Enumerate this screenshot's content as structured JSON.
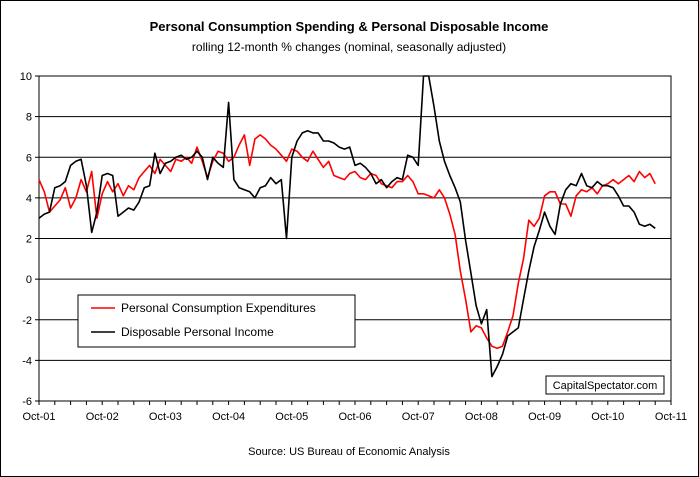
{
  "chart_data": {
    "type": "line",
    "title": "Personal Consumption Spending & Personal Disposable Income",
    "subtitle": "rolling 12-month % changes (nominal, seasonally adjusted)",
    "source": "Source: US Bureau of Economic Analysis",
    "watermark": "CapitalSpectator.com",
    "xlabel": "",
    "ylabel": "",
    "ylim": [
      -6,
      10
    ],
    "y_ticks": [
      -6,
      -4,
      -2,
      0,
      2,
      4,
      6,
      8,
      10
    ],
    "x_range": [
      0,
      120
    ],
    "x_tick_labels": [
      "Oct-01",
      "Oct-02",
      "Oct-03",
      "Oct-04",
      "Oct-05",
      "Oct-06",
      "Oct-07",
      "Oct-08",
      "Oct-09",
      "Oct-10",
      "Oct-11"
    ],
    "x_tick_months": [
      0,
      12,
      24,
      36,
      48,
      60,
      72,
      84,
      96,
      108,
      120
    ],
    "grid": "horizontal",
    "legend_position": "lower-left",
    "colors": {
      "pce": "#ff0000",
      "dpi": "#000000",
      "grid": "#000000"
    },
    "series": [
      {
        "name": "Personal Consumption Expenditures",
        "color": "#ff0000",
        "points": [
          [
            0,
            4.9
          ],
          [
            1,
            4.3
          ],
          [
            2,
            3.3
          ],
          [
            3,
            3.6
          ],
          [
            4,
            3.9
          ],
          [
            5,
            4.5
          ],
          [
            6,
            3.5
          ],
          [
            7,
            4.0
          ],
          [
            8,
            4.9
          ],
          [
            9,
            4.3
          ],
          [
            10,
            5.3
          ],
          [
            11,
            3.0
          ],
          [
            12,
            4.2
          ],
          [
            13,
            4.8
          ],
          [
            14,
            4.3
          ],
          [
            15,
            4.7
          ],
          [
            16,
            4.1
          ],
          [
            17,
            4.6
          ],
          [
            18,
            4.4
          ],
          [
            19,
            5.0
          ],
          [
            20,
            5.3
          ],
          [
            21,
            5.6
          ],
          [
            22,
            5.2
          ],
          [
            23,
            5.9
          ],
          [
            24,
            5.6
          ],
          [
            25,
            5.3
          ],
          [
            26,
            5.9
          ],
          [
            27,
            5.8
          ],
          [
            28,
            6.0
          ],
          [
            29,
            5.7
          ],
          [
            30,
            6.5
          ],
          [
            31,
            5.8
          ],
          [
            32,
            5.0
          ],
          [
            33,
            5.8
          ],
          [
            34,
            6.3
          ],
          [
            35,
            6.2
          ],
          [
            36,
            5.8
          ],
          [
            37,
            6.0
          ],
          [
            38,
            6.6
          ],
          [
            39,
            7.1
          ],
          [
            40,
            5.6
          ],
          [
            41,
            6.9
          ],
          [
            42,
            7.1
          ],
          [
            43,
            6.9
          ],
          [
            44,
            6.6
          ],
          [
            45,
            6.4
          ],
          [
            46,
            6.1
          ],
          [
            47,
            5.8
          ],
          [
            48,
            6.4
          ],
          [
            49,
            6.3
          ],
          [
            50,
            6.0
          ],
          [
            51,
            5.8
          ],
          [
            52,
            6.3
          ],
          [
            53,
            5.9
          ],
          [
            54,
            5.5
          ],
          [
            55,
            5.8
          ],
          [
            56,
            5.1
          ],
          [
            57,
            5.0
          ],
          [
            58,
            4.9
          ],
          [
            59,
            5.2
          ],
          [
            60,
            5.3
          ],
          [
            61,
            5.0
          ],
          [
            62,
            4.9
          ],
          [
            63,
            5.2
          ],
          [
            64,
            5.1
          ],
          [
            65,
            4.7
          ],
          [
            66,
            4.6
          ],
          [
            67,
            4.5
          ],
          [
            68,
            4.8
          ],
          [
            69,
            4.8
          ],
          [
            70,
            5.1
          ],
          [
            71,
            4.8
          ],
          [
            72,
            4.2
          ],
          [
            73,
            4.2
          ],
          [
            74,
            4.1
          ],
          [
            75,
            4.0
          ],
          [
            76,
            4.4
          ],
          [
            77,
            4.0
          ],
          [
            78,
            3.2
          ],
          [
            79,
            2.2
          ],
          [
            80,
            0.4
          ],
          [
            81,
            -1.0
          ],
          [
            82,
            -2.6
          ],
          [
            83,
            -2.3
          ],
          [
            84,
            -2.4
          ],
          [
            85,
            -2.9
          ],
          [
            86,
            -3.3
          ],
          [
            87,
            -3.4
          ],
          [
            88,
            -3.3
          ],
          [
            89,
            -2.6
          ],
          [
            90,
            -1.8
          ],
          [
            91,
            -0.2
          ],
          [
            92,
            1.0
          ],
          [
            93,
            2.9
          ],
          [
            94,
            2.6
          ],
          [
            95,
            3.0
          ],
          [
            96,
            4.1
          ],
          [
            97,
            4.3
          ],
          [
            98,
            4.3
          ],
          [
            99,
            3.7
          ],
          [
            100,
            3.7
          ],
          [
            101,
            3.1
          ],
          [
            102,
            4.1
          ],
          [
            103,
            4.4
          ],
          [
            104,
            4.3
          ],
          [
            105,
            4.5
          ],
          [
            106,
            4.2
          ],
          [
            107,
            4.6
          ],
          [
            108,
            4.7
          ],
          [
            109,
            4.9
          ],
          [
            110,
            4.7
          ],
          [
            111,
            4.9
          ],
          [
            112,
            5.1
          ],
          [
            113,
            4.8
          ],
          [
            114,
            5.3
          ],
          [
            115,
            5.0
          ],
          [
            116,
            5.2
          ],
          [
            117,
            4.7
          ]
        ]
      },
      {
        "name": "Disposable Personal Income",
        "color": "#000000",
        "points": [
          [
            0,
            3.0
          ],
          [
            1,
            3.2
          ],
          [
            2,
            3.3
          ],
          [
            3,
            4.5
          ],
          [
            4,
            4.6
          ],
          [
            5,
            4.8
          ],
          [
            6,
            5.6
          ],
          [
            7,
            5.8
          ],
          [
            8,
            5.9
          ],
          [
            9,
            4.6
          ],
          [
            10,
            2.3
          ],
          [
            11,
            3.3
          ],
          [
            12,
            5.1
          ],
          [
            13,
            5.2
          ],
          [
            14,
            5.1
          ],
          [
            15,
            3.1
          ],
          [
            16,
            3.3
          ],
          [
            17,
            3.5
          ],
          [
            18,
            3.4
          ],
          [
            19,
            3.8
          ],
          [
            20,
            4.5
          ],
          [
            21,
            4.6
          ],
          [
            22,
            6.2
          ],
          [
            23,
            5.2
          ],
          [
            24,
            5.7
          ],
          [
            25,
            5.8
          ],
          [
            26,
            6.0
          ],
          [
            27,
            6.1
          ],
          [
            28,
            5.9
          ],
          [
            29,
            6.0
          ],
          [
            30,
            6.3
          ],
          [
            31,
            6.0
          ],
          [
            32,
            4.9
          ],
          [
            33,
            6.0
          ],
          [
            34,
            5.7
          ],
          [
            35,
            5.5
          ],
          [
            36,
            8.7
          ],
          [
            37,
            4.9
          ],
          [
            38,
            4.5
          ],
          [
            39,
            4.4
          ],
          [
            40,
            4.3
          ],
          [
            41,
            4.0
          ],
          [
            42,
            4.5
          ],
          [
            43,
            4.6
          ],
          [
            44,
            5.0
          ],
          [
            45,
            4.7
          ],
          [
            46,
            4.9
          ],
          [
            47,
            2.0
          ],
          [
            48,
            6.0
          ],
          [
            49,
            6.8
          ],
          [
            50,
            7.2
          ],
          [
            51,
            7.3
          ],
          [
            52,
            7.2
          ],
          [
            53,
            7.2
          ],
          [
            54,
            6.8
          ],
          [
            55,
            6.8
          ],
          [
            56,
            6.7
          ],
          [
            57,
            6.5
          ],
          [
            58,
            6.4
          ],
          [
            59,
            6.5
          ],
          [
            60,
            5.6
          ],
          [
            61,
            5.7
          ],
          [
            62,
            5.5
          ],
          [
            63,
            5.2
          ],
          [
            64,
            4.7
          ],
          [
            65,
            4.9
          ],
          [
            66,
            4.5
          ],
          [
            67,
            4.8
          ],
          [
            68,
            5.0
          ],
          [
            69,
            4.9
          ],
          [
            70,
            6.1
          ],
          [
            71,
            6.0
          ],
          [
            72,
            5.6
          ],
          [
            73,
            10.0
          ],
          [
            74,
            10.0
          ],
          [
            75,
            8.5
          ],
          [
            76,
            6.8
          ],
          [
            77,
            5.8
          ],
          [
            78,
            5.1
          ],
          [
            79,
            4.5
          ],
          [
            80,
            3.8
          ],
          [
            81,
            1.9
          ],
          [
            82,
            0.3
          ],
          [
            83,
            -1.3
          ],
          [
            84,
            -2.2
          ],
          [
            85,
            -1.5
          ],
          [
            86,
            -4.8
          ],
          [
            87,
            -4.3
          ],
          [
            88,
            -3.7
          ],
          [
            89,
            -2.8
          ],
          [
            90,
            -2.6
          ],
          [
            91,
            -2.4
          ],
          [
            92,
            -1.0
          ],
          [
            93,
            0.4
          ],
          [
            94,
            1.6
          ],
          [
            95,
            2.4
          ],
          [
            96,
            3.3
          ],
          [
            97,
            2.6
          ],
          [
            98,
            2.2
          ],
          [
            99,
            3.7
          ],
          [
            100,
            4.4
          ],
          [
            101,
            4.7
          ],
          [
            102,
            4.6
          ],
          [
            103,
            5.2
          ],
          [
            104,
            4.6
          ],
          [
            105,
            4.5
          ],
          [
            106,
            4.8
          ],
          [
            107,
            4.6
          ],
          [
            108,
            4.6
          ],
          [
            109,
            4.5
          ],
          [
            110,
            4.1
          ],
          [
            111,
            3.6
          ],
          [
            112,
            3.6
          ],
          [
            113,
            3.3
          ],
          [
            114,
            2.7
          ],
          [
            115,
            2.6
          ],
          [
            116,
            2.7
          ],
          [
            117,
            2.5
          ]
        ]
      }
    ]
  }
}
